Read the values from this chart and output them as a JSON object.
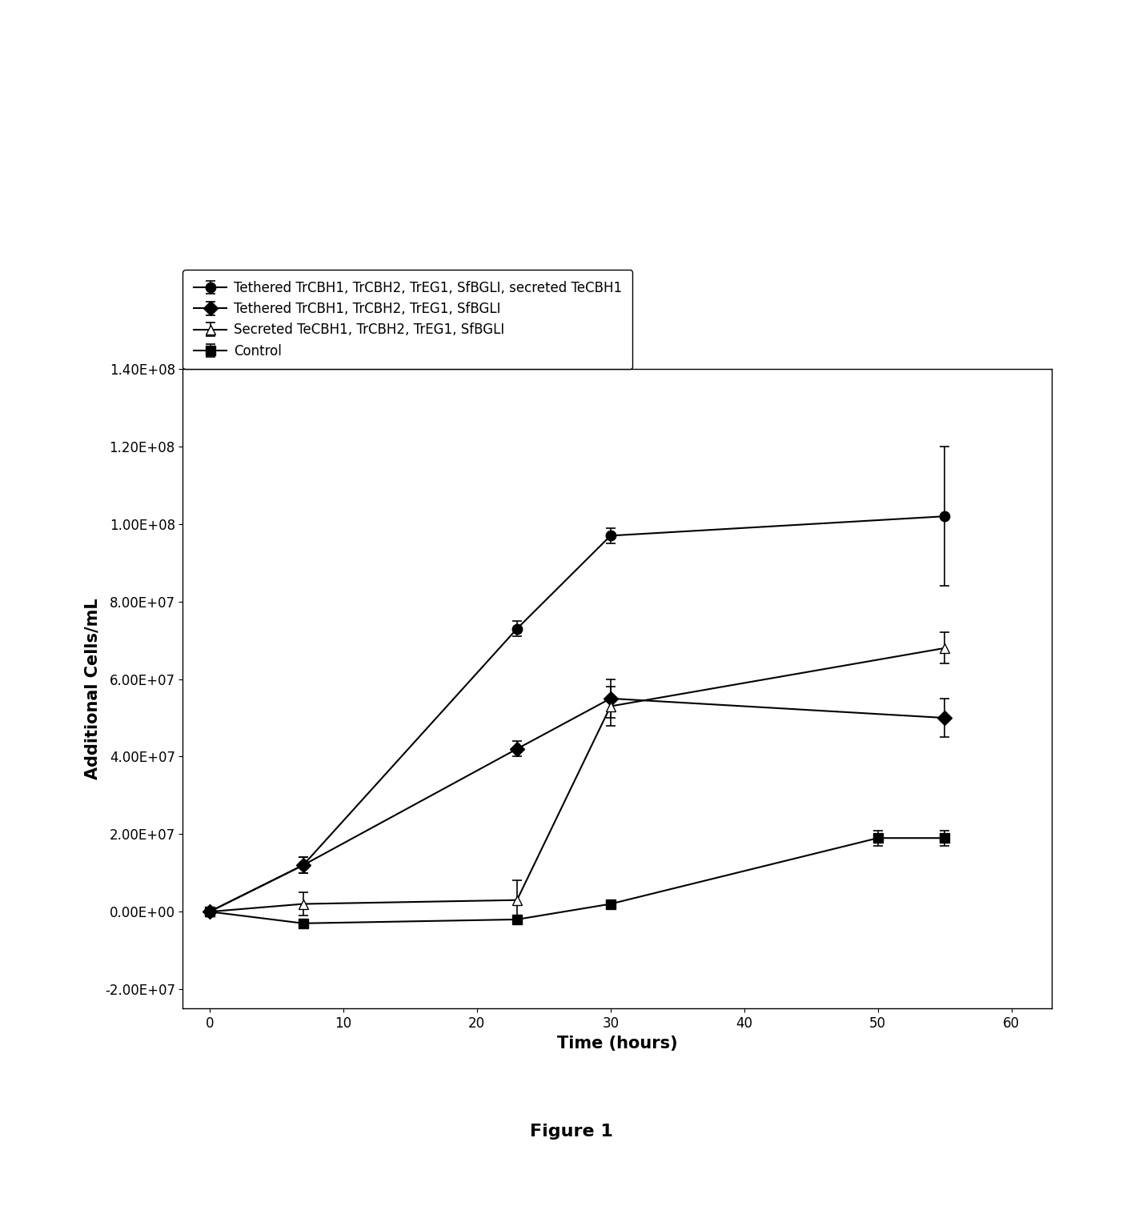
{
  "series": [
    {
      "label": "Tethered TrCBH1, TrCBH2, TrEG1, SfBGLI, secreted TeCBH1",
      "x": [
        0,
        7,
        23,
        30,
        55
      ],
      "y": [
        0,
        12000000.0,
        73000000.0,
        97000000.0,
        102000000.0
      ],
      "yerr": [
        1000000.0,
        2000000.0,
        2000000.0,
        2000000.0,
        18000000.0
      ],
      "marker": "o",
      "marker_fill": "black",
      "linestyle": "-",
      "color": "black"
    },
    {
      "label": "Tethered TrCBH1, TrCBH2, TrEG1, SfBGLI",
      "x": [
        0,
        7,
        23,
        30,
        55
      ],
      "y": [
        0,
        12000000.0,
        42000000.0,
        55000000.0,
        50000000.0
      ],
      "yerr": [
        1000000.0,
        2000000.0,
        2000000.0,
        5000000.0,
        5000000.0
      ],
      "marker": "D",
      "marker_fill": "black",
      "linestyle": "-",
      "color": "black"
    },
    {
      "label": "Secreted TeCBH1, TrCBH2, TrEG1, SfBGLI",
      "x": [
        0,
        7,
        23,
        30,
        55
      ],
      "y": [
        0,
        2000000.0,
        3000000.0,
        53000000.0,
        68000000.0
      ],
      "yerr": [
        1000000.0,
        3000000.0,
        5000000.0,
        5000000.0,
        4000000.0
      ],
      "marker": "^",
      "marker_fill": "white",
      "linestyle": "-",
      "color": "black"
    },
    {
      "label": "Control",
      "x": [
        0,
        7,
        23,
        30,
        50,
        55
      ],
      "y": [
        0,
        -3000000.0,
        -2000000.0,
        2000000.0,
        19000000.0,
        19000000.0
      ],
      "yerr": [
        1000000.0,
        1000000.0,
        1000000.0,
        1000000.0,
        2000000.0,
        2000000.0
      ],
      "marker": "s",
      "marker_fill": "black",
      "linestyle": "-",
      "color": "black"
    }
  ],
  "xlabel": "Time (hours)",
  "ylabel": "Additional Cells/mL",
  "ylim": [
    -25000000.0,
    140000000.0
  ],
  "xlim": [
    -2,
    63
  ],
  "xticks": [
    0,
    10,
    20,
    30,
    40,
    50,
    60
  ],
  "yticks": [
    -20000000.0,
    0.0,
    20000000.0,
    40000000.0,
    60000000.0,
    80000000.0,
    100000000.0,
    120000000.0,
    140000000.0
  ],
  "ytick_labels": [
    "-2.00E+07",
    "0.00E+00",
    "2.00E+07",
    "4.00E+07",
    "6.00E+07",
    "8.00E+07",
    "1.00E+08",
    "1.20E+08",
    "1.40E+08"
  ],
  "figure_label": "Figure 1",
  "background_color": "#ffffff",
  "legend_fontsize": 12,
  "axis_fontsize": 15,
  "tick_fontsize": 12,
  "title_fontsize": 16
}
